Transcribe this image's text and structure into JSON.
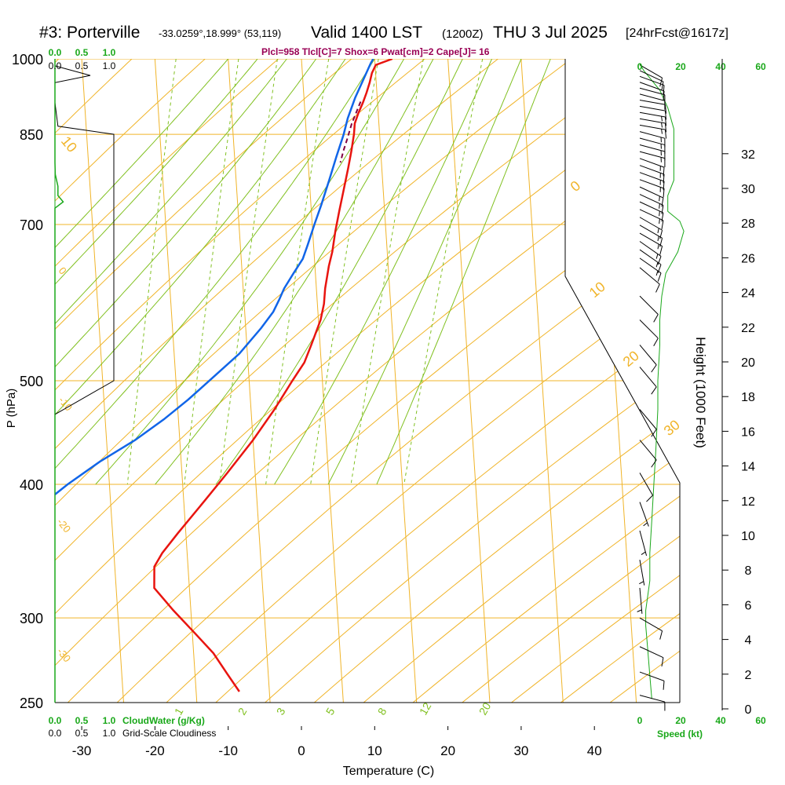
{
  "header": {
    "station": "#3: Porterville",
    "coords": "-33.0259°,18.999° (53,119)",
    "valid": "Valid 1400 LST",
    "zulu": "(1200Z)",
    "date": "THU 3 Jul 2025",
    "forecast": "[24hrFcst@1617z]",
    "params": "Plcl=958 Tlcl[C]=7 Shox=6 Pwat[cm]=2 Cape[J]= 16"
  },
  "chart_data": {
    "type": "line",
    "subtype": "skew-t log-p sounding",
    "xlabel": "Temperature (C)",
    "ylabel": "P (hPa)",
    "right_ylabel": "Height (1000 Feet)",
    "xlim": [
      -34,
      36
    ],
    "ylim": [
      1000,
      250
    ],
    "x_ticks": [
      -30,
      -20,
      -10,
      0,
      10,
      20,
      30,
      40
    ],
    "pressure_ticks": [
      1000,
      850,
      700,
      500,
      400,
      300,
      250
    ],
    "height_ticks": [
      0,
      2,
      4,
      6,
      8,
      10,
      12,
      14,
      16,
      18,
      20,
      22,
      24,
      26,
      28,
      30,
      32
    ],
    "series": [
      {
        "name": "Temperature",
        "color": "#e8140f",
        "points": [
          [
            12.4,
            1000
          ],
          [
            10.1,
            987
          ],
          [
            9.5,
            970
          ],
          [
            9.1,
            950
          ],
          [
            8.6,
            930
          ],
          [
            8.0,
            910
          ],
          [
            7.3,
            890
          ],
          [
            6.7,
            870
          ],
          [
            6.5,
            850
          ],
          [
            6.0,
            820
          ],
          [
            5.4,
            790
          ],
          [
            4.5,
            750
          ],
          [
            3.8,
            720
          ],
          [
            3.1,
            690
          ],
          [
            2.5,
            660
          ],
          [
            1.9,
            640
          ],
          [
            1.2,
            610
          ],
          [
            0.9,
            590
          ],
          [
            0.3,
            570
          ],
          [
            -1.2,
            540
          ],
          [
            -2.3,
            520
          ],
          [
            -4.1,
            500
          ],
          [
            -6.8,
            470
          ],
          [
            -10.0,
            440
          ],
          [
            -13.8,
            410
          ],
          [
            -17.3,
            385
          ],
          [
            -21.1,
            360
          ],
          [
            -23.4,
            345
          ],
          [
            -24.6,
            335
          ],
          [
            -24.8,
            320
          ],
          [
            -22.4,
            305
          ],
          [
            -19.6,
            290
          ],
          [
            -17.3,
            278
          ],
          [
            -15.6,
            266
          ],
          [
            -14.1,
            256
          ]
        ]
      },
      {
        "name": "Dew point",
        "color": "#1165e8",
        "points": [
          [
            9.8,
            1000
          ],
          [
            9.4,
            990
          ],
          [
            8.4,
            960
          ],
          [
            7.0,
            920
          ],
          [
            5.8,
            880
          ],
          [
            5.1,
            850
          ],
          [
            3.9,
            810
          ],
          [
            2.7,
            770
          ],
          [
            1.4,
            730
          ],
          [
            0.3,
            700
          ],
          [
            -0.8,
            670
          ],
          [
            -1.6,
            650
          ],
          [
            -3.0,
            630
          ],
          [
            -4.4,
            610
          ],
          [
            -5.2,
            595
          ],
          [
            -6.1,
            580
          ],
          [
            -7.9,
            560
          ],
          [
            -11.1,
            530
          ],
          [
            -14.7,
            505
          ],
          [
            -18.5,
            480
          ],
          [
            -22.0,
            460
          ],
          [
            -26.1,
            440
          ],
          [
            -31.1,
            420
          ],
          [
            -35.7,
            400
          ],
          [
            -38.9,
            385
          ],
          [
            -40.8,
            370
          ],
          [
            -42.4,
            355
          ],
          [
            -44.6,
            340
          ],
          [
            -47.8,
            325
          ],
          [
            -53.5,
            310
          ],
          [
            -60.0,
            293
          ],
          [
            -65.0,
            275
          ],
          [
            -63.1,
            262
          ]
        ]
      }
    ],
    "parcel": {
      "name": "Parcel",
      "color": "#800040",
      "points": [
        [
          7.7,
          912
        ],
        [
          6.3,
          870
        ],
        [
          5.5,
          840
        ],
        [
          4.9,
          820
        ],
        [
          4.4,
          800
        ]
      ]
    },
    "surface_markers": {
      "temperature": 12.4,
      "dewpoint": 9.8
    },
    "isotherm_labels": [
      "10",
      "0",
      "10",
      "20",
      "30"
    ],
    "dry_adiabat_labels": [
      "-10",
      "0",
      "-10",
      "-20",
      "-30"
    ],
    "mixing_ratio_labels": [
      "1",
      "2",
      "3",
      "5",
      "8",
      "12",
      "20"
    ],
    "cloud_water": {
      "label": "CloudWater (g/Kg)",
      "ticks": [
        "0.0",
        "0.5",
        "1.0"
      ],
      "points": [
        [
          0.0,
          1000
        ],
        [
          0.0,
          800
        ],
        [
          0.005,
          780
        ],
        [
          0.05,
          760
        ],
        [
          0.05,
          745
        ],
        [
          0.14,
          735
        ],
        [
          0.0,
          725
        ],
        [
          0.0,
          600
        ],
        [
          0.0,
          250
        ]
      ]
    },
    "cloudiness": {
      "label": "Grid-Scale Cloudiness",
      "ticks": [
        "0.0",
        "0.5",
        "1.0"
      ],
      "points": [
        [
          0.0,
          985
        ],
        [
          0.6,
          965
        ],
        [
          0.0,
          950
        ],
        [
          0.0,
          910
        ],
        [
          0.05,
          865
        ],
        [
          1.0,
          850
        ],
        [
          1.0,
          500
        ],
        [
          0.0,
          465
        ]
      ]
    },
    "wind_speed": {
      "label": "Speed (kt)",
      "ticks": [
        "0",
        "20",
        "40",
        "60"
      ],
      "points": [
        [
          0,
          990
        ],
        [
          2,
          975
        ],
        [
          10,
          935
        ],
        [
          14,
          900
        ],
        [
          17,
          860
        ],
        [
          17,
          770
        ],
        [
          14,
          745
        ],
        [
          14,
          720
        ],
        [
          20,
          705
        ],
        [
          22,
          690
        ],
        [
          19,
          660
        ],
        [
          13,
          630
        ],
        [
          11,
          600
        ],
        [
          10,
          570
        ],
        [
          10,
          540
        ],
        [
          9,
          500
        ],
        [
          9,
          470
        ],
        [
          8,
          430
        ],
        [
          7,
          400
        ],
        [
          6,
          370
        ],
        [
          5,
          345
        ],
        [
          5,
          325
        ],
        [
          3,
          305
        ],
        [
          3,
          295
        ],
        [
          4,
          280
        ],
        [
          5,
          265
        ],
        [
          6,
          252
        ]
      ]
    },
    "wind_barbs": [
      {
        "p": 987,
        "dir": 300,
        "spd": 10
      },
      {
        "p": 975,
        "dir": 295,
        "spd": 10
      },
      {
        "p": 963,
        "dir": 290,
        "spd": 12
      },
      {
        "p": 951,
        "dir": 290,
        "spd": 12
      },
      {
        "p": 939,
        "dir": 285,
        "spd": 12
      },
      {
        "p": 927,
        "dir": 285,
        "spd": 14
      },
      {
        "p": 915,
        "dir": 280,
        "spd": 14
      },
      {
        "p": 903,
        "dir": 280,
        "spd": 14
      },
      {
        "p": 891,
        "dir": 280,
        "spd": 15
      },
      {
        "p": 879,
        "dir": 280,
        "spd": 15
      },
      {
        "p": 867,
        "dir": 280,
        "spd": 15
      },
      {
        "p": 855,
        "dir": 285,
        "spd": 15
      },
      {
        "p": 843,
        "dir": 285,
        "spd": 15
      },
      {
        "p": 831,
        "dir": 285,
        "spd": 15
      },
      {
        "p": 819,
        "dir": 285,
        "spd": 15
      },
      {
        "p": 807,
        "dir": 290,
        "spd": 15
      },
      {
        "p": 795,
        "dir": 290,
        "spd": 15
      },
      {
        "p": 783,
        "dir": 290,
        "spd": 15
      },
      {
        "p": 771,
        "dir": 290,
        "spd": 15
      },
      {
        "p": 759,
        "dir": 295,
        "spd": 15
      },
      {
        "p": 747,
        "dir": 295,
        "spd": 15
      },
      {
        "p": 735,
        "dir": 295,
        "spd": 15
      },
      {
        "p": 723,
        "dir": 295,
        "spd": 15
      },
      {
        "p": 711,
        "dir": 300,
        "spd": 15
      },
      {
        "p": 699,
        "dir": 300,
        "spd": 15
      },
      {
        "p": 687,
        "dir": 300,
        "spd": 15
      },
      {
        "p": 675,
        "dir": 305,
        "spd": 15
      },
      {
        "p": 663,
        "dir": 305,
        "spd": 15
      },
      {
        "p": 651,
        "dir": 305,
        "spd": 15
      },
      {
        "p": 638,
        "dir": 310,
        "spd": 10
      },
      {
        "p": 600,
        "dir": 315,
        "spd": 10
      },
      {
        "p": 570,
        "dir": 315,
        "spd": 10
      },
      {
        "p": 540,
        "dir": 320,
        "spd": 10
      },
      {
        "p": 515,
        "dir": 320,
        "spd": 10
      },
      {
        "p": 470,
        "dir": 320,
        "spd": 10
      },
      {
        "p": 440,
        "dir": 320,
        "spd": 10
      },
      {
        "p": 410,
        "dir": 330,
        "spd": 10
      },
      {
        "p": 385,
        "dir": 340,
        "spd": 5
      },
      {
        "p": 362,
        "dir": 345,
        "spd": 5
      },
      {
        "p": 340,
        "dir": 350,
        "spd": 5
      },
      {
        "p": 320,
        "dir": 355,
        "spd": 5
      },
      {
        "p": 300,
        "dir": 300,
        "spd": 10
      },
      {
        "p": 282,
        "dir": 295,
        "spd": 10
      },
      {
        "p": 267,
        "dir": 290,
        "spd": 10
      },
      {
        "p": 254,
        "dir": 285,
        "spd": 10
      }
    ]
  }
}
